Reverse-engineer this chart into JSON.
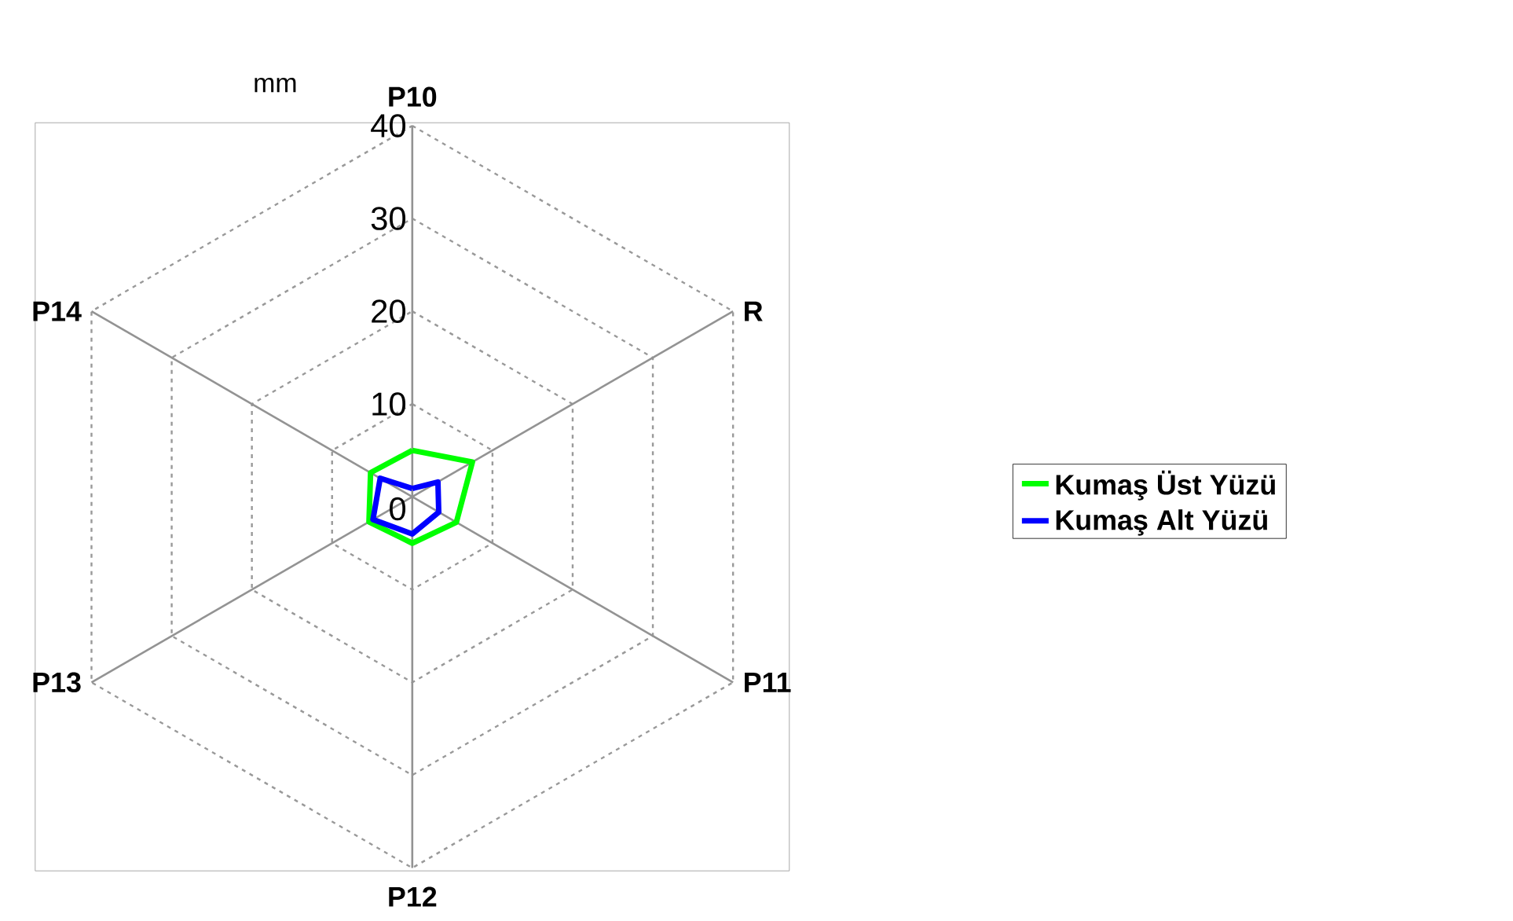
{
  "chart_data": {
    "type": "radar",
    "ylabel": "mm",
    "categories": [
      "P10",
      "R",
      "P11",
      "P12",
      "P13",
      "P14"
    ],
    "series": [
      {
        "name": "Kumaş Üst Yüzü",
        "color": "#00ff00",
        "values": [
          5,
          7.5,
          5.5,
          5,
          5.4,
          5.2
        ]
      },
      {
        "name": "Kumaş Alt Yüzü",
        "color": "#0000ff",
        "values": [
          0.9,
          3.2,
          3.3,
          4,
          4.9,
          4
        ]
      }
    ],
    "ylim": [
      0,
      40
    ],
    "yticks": [
      0,
      10,
      20,
      30,
      40
    ],
    "legend": "right"
  }
}
